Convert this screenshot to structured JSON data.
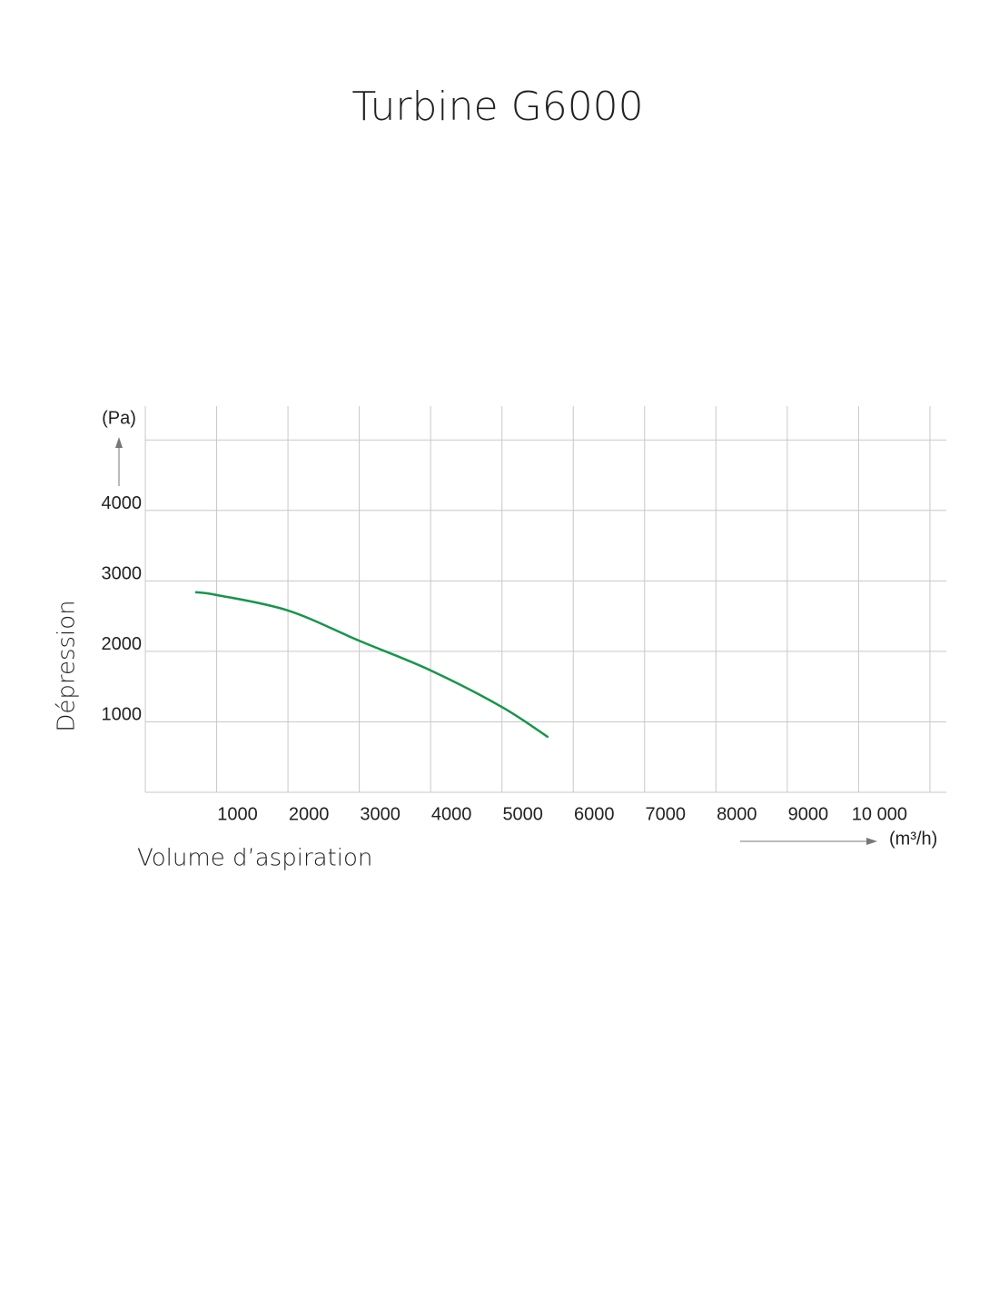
{
  "chart_data": {
    "type": "line",
    "title": "Turbine G6000",
    "ylabel": "Dépression",
    "yunit": "(Pa)",
    "xlabel": "Volume d’aspiration",
    "xunit": "(m³/h)",
    "x": [
      700,
      1000,
      2000,
      3000,
      4000,
      5000,
      5650
    ],
    "series": [
      {
        "name": "G6000",
        "color": "#16964a",
        "values": [
          2840,
          2800,
          2580,
          2150,
          1730,
          1210,
          780
        ]
      }
    ],
    "xlim": [
      0,
      11230
    ],
    "ylim": [
      0,
      5480
    ],
    "xticks": [
      1000,
      2000,
      3000,
      4000,
      5000,
      6000,
      7000,
      8000,
      9000,
      {
        "value": 10000,
        "label": "10 000"
      },
      {
        "value": 11000,
        "label": null
      }
    ],
    "yticks": [
      1000,
      2000,
      3000,
      4000,
      {
        "value": 5000,
        "label": null
      }
    ],
    "grid": true
  }
}
